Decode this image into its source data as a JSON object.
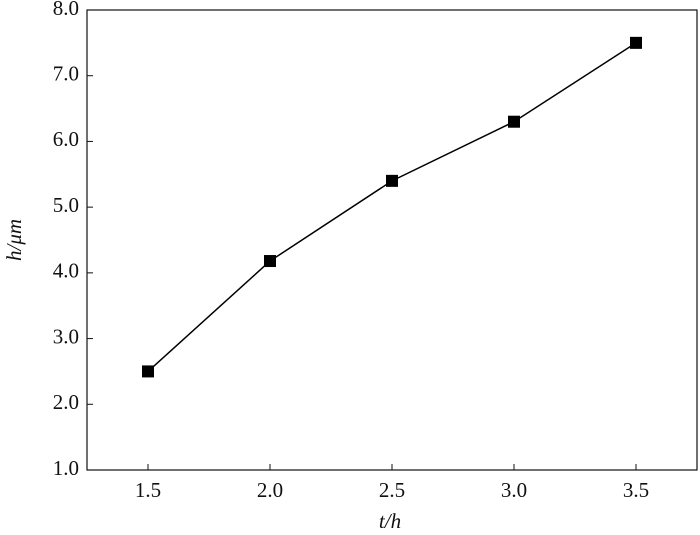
{
  "chart_data": {
    "type": "line",
    "x_label": "t/h",
    "y_label": "h/μm",
    "x": [
      1.5,
      2.0,
      2.5,
      3.0,
      3.5
    ],
    "series": [
      {
        "name": "h",
        "color": "#000000",
        "values": [
          2.5,
          4.18,
          5.4,
          6.3,
          7.5
        ]
      }
    ],
    "xlim": [
      1.25,
      3.75
    ],
    "xticks": [
      1.5,
      {
        "value": 2,
        "label": "2.0"
      },
      2.5,
      {
        "value": 3,
        "label": "3.0"
      },
      3.5
    ],
    "ylim": [
      1,
      8
    ],
    "yticks": [
      {
        "value": 1,
        "label": "1.0"
      },
      {
        "value": 2,
        "label": "2.0"
      },
      {
        "value": 3,
        "label": "3.0"
      },
      {
        "value": 4,
        "label": "4.0"
      },
      {
        "value": 5,
        "label": "5.0"
      },
      {
        "value": 6,
        "label": "6.0"
      },
      {
        "value": 7,
        "label": "7.0"
      },
      {
        "value": 8,
        "label": "8.0"
      }
    ],
    "grid": false
  }
}
